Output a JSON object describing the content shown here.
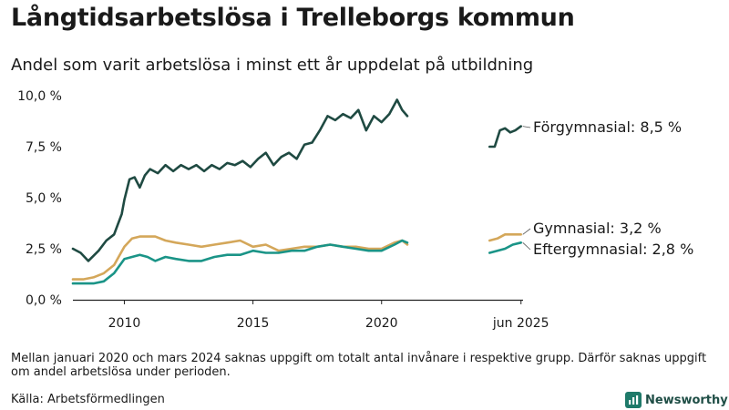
{
  "title": "Långtidsarbetslösa i Trelleborgs kommun",
  "subtitle": "Andel som varit arbetslösa i minst ett år uppdelat på utbildning",
  "note": "Mellan januari 2020 och mars 2024 saknas uppgift om totalt antal invånare i respektive grupp. Därför saknas uppgift om andel arbetslösa under perioden.",
  "source": "Källa: Arbetsförmedlingen",
  "brand": "Newsworthy",
  "colors": {
    "forgymnasial": "#1f4a42",
    "gymnasial": "#d4a75a",
    "eftergymnasial": "#1a9487",
    "axis": "#222222"
  },
  "chart_data": {
    "type": "line",
    "title": "Långtidsarbetslösa i Trelleborgs kommun",
    "ylabel": "",
    "xlabel": "",
    "ylim": [
      0,
      10
    ],
    "xlim": [
      2008.0,
      2025.5
    ],
    "y_ticks": [
      0,
      2.5,
      5,
      7.5,
      10
    ],
    "y_tick_labels": [
      "0,0 %",
      "2,5 %",
      "5,0 %",
      "7,5 %",
      "10,0 %"
    ],
    "x_ticks": [
      2010,
      2015,
      2020,
      2025.42
    ],
    "x_tick_labels": [
      "2010",
      "2015",
      "2020",
      "jun 2025"
    ],
    "gap": {
      "from": 2021.0,
      "to": 2024.2
    },
    "series": [
      {
        "name": "Förgymnasial",
        "label": "Förgymnasial: 8,5 %",
        "color_key": "forgymnasial",
        "segments": [
          {
            "x": [
              2008.0,
              2008.3,
              2008.6,
              2009.0,
              2009.3,
              2009.6,
              2009.9,
              2010.0,
              2010.2,
              2010.4,
              2010.6,
              2010.8,
              2011.0,
              2011.3,
              2011.6,
              2011.9,
              2012.2,
              2012.5,
              2012.8,
              2013.1,
              2013.4,
              2013.7,
              2014.0,
              2014.3,
              2014.6,
              2014.9,
              2015.2,
              2015.5,
              2015.8,
              2016.1,
              2016.4,
              2016.7,
              2017.0,
              2017.3,
              2017.6,
              2017.9,
              2018.2,
              2018.5,
              2018.8,
              2019.1,
              2019.4,
              2019.7,
              2020.0,
              2020.3,
              2020.6,
              2020.8,
              2021.0
            ],
            "y": [
              2.5,
              2.3,
              1.9,
              2.4,
              2.9,
              3.2,
              4.2,
              4.9,
              5.9,
              6.0,
              5.5,
              6.1,
              6.4,
              6.2,
              6.6,
              6.3,
              6.6,
              6.4,
              6.6,
              6.3,
              6.6,
              6.4,
              6.7,
              6.6,
              6.8,
              6.5,
              6.9,
              7.2,
              6.6,
              7.0,
              7.2,
              6.9,
              7.6,
              7.7,
              8.3,
              9.0,
              8.8,
              9.1,
              8.9,
              9.3,
              8.3,
              9.0,
              8.7,
              9.1,
              9.8,
              9.3,
              9.0
            ]
          },
          {
            "x": [
              2024.2,
              2024.4,
              2024.6,
              2024.8,
              2025.0,
              2025.2,
              2025.42
            ],
            "y": [
              7.5,
              7.5,
              8.3,
              8.4,
              8.2,
              8.3,
              8.5
            ]
          }
        ]
      },
      {
        "name": "Gymnasial",
        "label": "Gymnasial: 3,2 %",
        "color_key": "gymnasial",
        "segments": [
          {
            "x": [
              2008.0,
              2008.4,
              2008.8,
              2009.2,
              2009.6,
              2010.0,
              2010.3,
              2010.6,
              2010.9,
              2011.2,
              2011.6,
              2012.0,
              2012.5,
              2013.0,
              2013.5,
              2014.0,
              2014.5,
              2015.0,
              2015.5,
              2016.0,
              2016.5,
              2017.0,
              2017.5,
              2018.0,
              2018.5,
              2019.0,
              2019.5,
              2020.0,
              2020.5,
              2020.8,
              2021.0
            ],
            "y": [
              1.0,
              1.0,
              1.1,
              1.3,
              1.7,
              2.6,
              3.0,
              3.1,
              3.1,
              3.1,
              2.9,
              2.8,
              2.7,
              2.6,
              2.7,
              2.8,
              2.9,
              2.6,
              2.7,
              2.4,
              2.5,
              2.6,
              2.6,
              2.7,
              2.6,
              2.6,
              2.5,
              2.5,
              2.8,
              2.9,
              2.7
            ]
          },
          {
            "x": [
              2024.2,
              2024.5,
              2024.8,
              2025.1,
              2025.42
            ],
            "y": [
              2.9,
              3.0,
              3.2,
              3.2,
              3.2
            ]
          }
        ]
      },
      {
        "name": "Eftergymnasial",
        "label": "Eftergymnasial: 2,8 %",
        "color_key": "eftergymnasial",
        "segments": [
          {
            "x": [
              2008.0,
              2008.4,
              2008.8,
              2009.2,
              2009.6,
              2010.0,
              2010.3,
              2010.6,
              2010.9,
              2011.2,
              2011.6,
              2012.0,
              2012.5,
              2013.0,
              2013.5,
              2014.0,
              2014.5,
              2015.0,
              2015.5,
              2016.0,
              2016.5,
              2017.0,
              2017.5,
              2018.0,
              2018.5,
              2019.0,
              2019.5,
              2020.0,
              2020.5,
              2020.8,
              2021.0
            ],
            "y": [
              0.8,
              0.8,
              0.8,
              0.9,
              1.3,
              2.0,
              2.1,
              2.2,
              2.1,
              1.9,
              2.1,
              2.0,
              1.9,
              1.9,
              2.1,
              2.2,
              2.2,
              2.4,
              2.3,
              2.3,
              2.4,
              2.4,
              2.6,
              2.7,
              2.6,
              2.5,
              2.4,
              2.4,
              2.7,
              2.9,
              2.8
            ]
          },
          {
            "x": [
              2024.2,
              2024.5,
              2024.8,
              2025.1,
              2025.42
            ],
            "y": [
              2.3,
              2.4,
              2.5,
              2.7,
              2.8
            ]
          }
        ]
      }
    ]
  }
}
